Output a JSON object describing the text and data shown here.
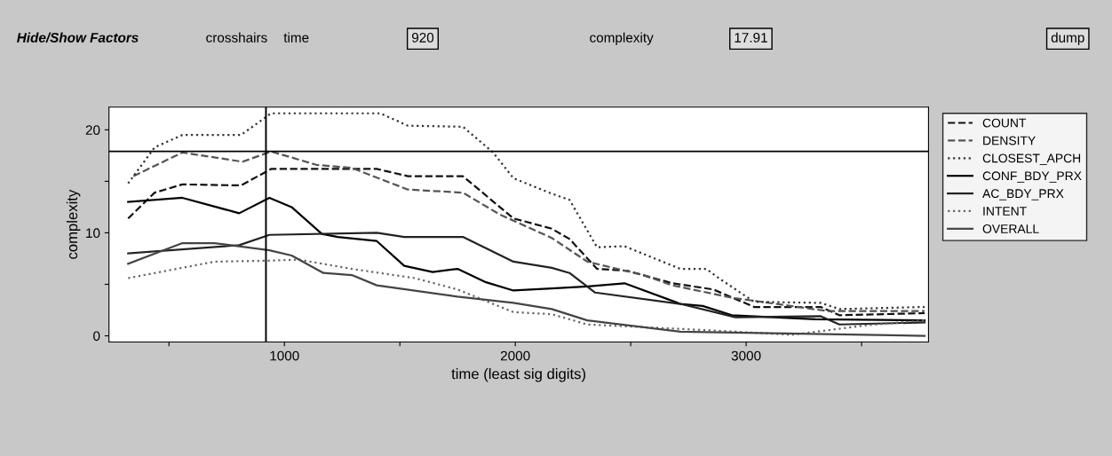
{
  "chart_data": {
    "type": "line",
    "xlabel": "time (least sig digits)",
    "ylabel": "complexity",
    "annotations": [
      "Hide/Show Factors",
      "crosshairs",
      "time",
      "920",
      "complexity",
      "17.91",
      "dump"
    ],
    "xlim": [
      240,
      3790
    ],
    "ylim": [
      -0.6,
      22.2
    ],
    "xticks": [
      {
        "value": 500,
        "label": null
      },
      1000,
      {
        "value": 1500,
        "label": null
      },
      2000,
      {
        "value": 2500,
        "label": null
      },
      3000,
      {
        "value": 3500,
        "label": null
      }
    ],
    "yticks": [
      0,
      {
        "value": 5,
        "label": null
      },
      10,
      {
        "value": 15,
        "label": null
      },
      20
    ],
    "grid": false,
    "legend": "right",
    "marker": "none",
    "ref_lines": [
      {
        "axis": "x",
        "value": 920,
        "color": "#000000"
      },
      {
        "axis": "y",
        "value": 17.91,
        "color": "#000000"
      }
    ],
    "series": [
      {
        "name": "COUNT",
        "color": "#111111",
        "line_style": "dashed",
        "x": [
          323,
          438,
          558,
          812,
          942,
          1400,
          1535,
          1773,
          1992,
          2158,
          2235,
          2354,
          2488,
          2681,
          2858,
          3035,
          3323,
          3404,
          3773
        ],
        "values": [
          11.4,
          13.9,
          14.7,
          14.6,
          16.2,
          16.2,
          15.5,
          15.5,
          11.4,
          10.4,
          9.4,
          6.5,
          6.3,
          5.1,
          4.5,
          2.8,
          2.8,
          2.0,
          2.2
        ]
      },
      {
        "name": "DENSITY",
        "color": "#555555",
        "line_style": "dashed",
        "x": [
          346,
          558,
          819,
          942,
          1138,
          1292,
          1535,
          1773,
          1931,
          2158,
          2312,
          2554,
          2681,
          2938,
          3354,
          3773
        ],
        "values": [
          15.5,
          17.8,
          16.9,
          17.9,
          16.6,
          16.3,
          14.2,
          13.9,
          11.8,
          9.5,
          7.2,
          5.9,
          4.9,
          3.7,
          2.4,
          2.4
        ]
      },
      {
        "name": "CLOSEST_APCH",
        "color": "#333333",
        "line_style": "dotted",
        "x": [
          323,
          438,
          558,
          812,
          942,
          1415,
          1535,
          1773,
          1904,
          1992,
          2158,
          2235,
          2354,
          2473,
          2715,
          2827,
          2888,
          3035,
          3323,
          3404,
          3773
        ],
        "values": [
          14.8,
          18.3,
          19.5,
          19.5,
          21.6,
          21.6,
          20.4,
          20.3,
          17.8,
          15.3,
          13.8,
          13.2,
          8.6,
          8.7,
          6.5,
          6.5,
          5.5,
          3.3,
          3.2,
          2.6,
          2.8
        ]
      },
      {
        "name": "CONF_BDY_PRX",
        "color": "#000000",
        "line_style": "solid",
        "x": [
          323,
          558,
          804,
          935,
          1031,
          1162,
          1231,
          1400,
          1519,
          1642,
          1750,
          1873,
          1992,
          2158,
          2312,
          2473,
          2715,
          2812,
          2938,
          3300,
          3773
        ],
        "values": [
          13.0,
          13.4,
          11.9,
          13.4,
          12.5,
          9.9,
          9.6,
          9.2,
          6.8,
          6.2,
          6.5,
          5.2,
          4.4,
          4.6,
          4.8,
          5.1,
          3.1,
          2.9,
          2.0,
          1.6,
          1.5
        ]
      },
      {
        "name": "AC_BDY_PRX",
        "color": "#222222",
        "line_style": "solid",
        "x": [
          323,
          804,
          935,
          1400,
          1519,
          1773,
          1992,
          2158,
          2235,
          2346,
          2715,
          2954,
          3323,
          3404,
          3773
        ],
        "values": [
          8.0,
          8.8,
          9.8,
          10.0,
          9.6,
          9.6,
          7.2,
          6.6,
          6.1,
          4.2,
          3.1,
          1.8,
          1.9,
          1.1,
          1.3
        ]
      },
      {
        "name": "INTENT",
        "color": "#666666",
        "line_style": "dotted",
        "x": [
          323,
          696,
          942,
          1062,
          1292,
          1565,
          1750,
          1992,
          2158,
          2312,
          2873,
          3196,
          3515,
          3773
        ],
        "values": [
          5.6,
          7.2,
          7.3,
          7.4,
          6.5,
          5.6,
          4.5,
          2.3,
          2.1,
          1.1,
          0.5,
          0.1,
          1.0,
          1.5
        ]
      },
      {
        "name": "OVERALL",
        "color": "#444444",
        "line_style": "solid",
        "x": [
          323,
          558,
          696,
          804,
          935,
          1031,
          1169,
          1292,
          1400,
          1750,
          1992,
          2158,
          2312,
          2715,
          3773
        ],
        "values": [
          7.0,
          9.0,
          9.0,
          8.7,
          8.3,
          7.8,
          6.1,
          5.9,
          4.9,
          3.8,
          3.2,
          2.6,
          1.5,
          0.4,
          0.0
        ]
      }
    ]
  }
}
